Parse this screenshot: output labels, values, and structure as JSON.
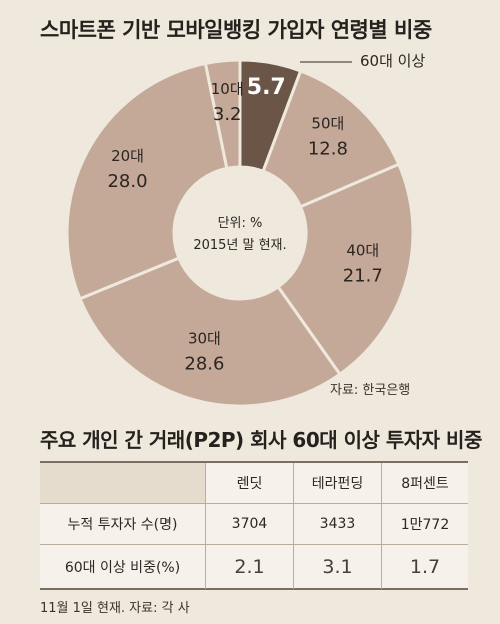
{
  "title": "스마트폰 기반 모바일뱅킹 가입자 연령별 비중",
  "chart_data": {
    "type": "pie",
    "donut": true,
    "title": "스마트폰 기반 모바일뱅킹 가입자 연령별 비중",
    "center_note": [
      "단위: %",
      "2015년 말 현재."
    ],
    "source": "자료: 한국은행",
    "slices": [
      {
        "label": "60대 이상",
        "value": 5.7,
        "value_text": "5.7",
        "color": "#6b5546",
        "text_color": "#ffffff"
      },
      {
        "label": "50대",
        "value": 12.8,
        "value_text": "12.8",
        "color": "#c4a898",
        "text_color": "#2b2622"
      },
      {
        "label": "40대",
        "value": 21.7,
        "value_text": "21.7",
        "color": "#c4a898",
        "text_color": "#2b2622"
      },
      {
        "label": "30대",
        "value": 28.6,
        "value_text": "28.6",
        "color": "#c4a898",
        "text_color": "#2b2622"
      },
      {
        "label": "20대",
        "value": 28.0,
        "value_text": "28.0",
        "color": "#c4a898",
        "text_color": "#2b2622"
      },
      {
        "label": "10대",
        "value": 3.2,
        "value_text": "3.2",
        "color": "#c4a898",
        "text_color": "#2b2622"
      }
    ]
  },
  "table": {
    "title": "주요 개인 간 거래(P2P) 회사 60대 이상 투자자 비중",
    "columns": [
      "렌딧",
      "테라펀딩",
      "8퍼센트"
    ],
    "rows": [
      {
        "label": "누적 투자자 수(명)",
        "values": [
          "3704",
          "3433",
          "1만772"
        ]
      },
      {
        "label": "60대 이상 비중(%)",
        "values": [
          "2.1",
          "3.1",
          "1.7"
        ]
      }
    ],
    "footer": "11월 1일 현재.  자료: 각 사"
  }
}
